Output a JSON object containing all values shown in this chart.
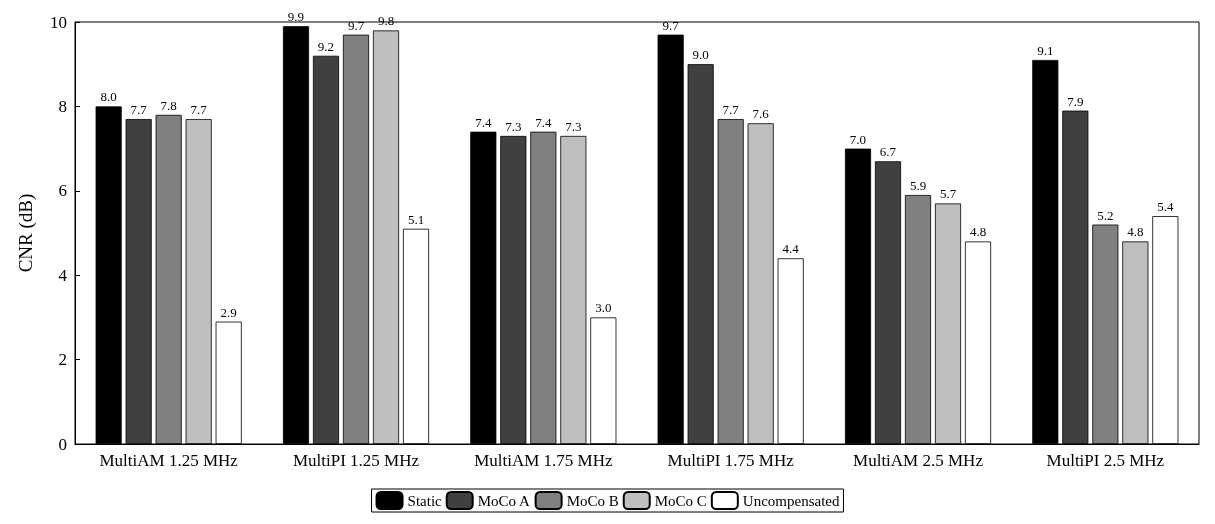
{
  "chart_data": {
    "type": "bar",
    "ylabel": "CNR (dB)",
    "categories": [
      "MultiAM 1.25 MHz",
      "MultiPI 1.25 MHz",
      "MultiAM 1.75 MHz",
      "MultiPI 1.75 MHz",
      "MultiAM 2.5 MHz",
      "MultiPI 2.5 MHz"
    ],
    "series": [
      {
        "name": "Static",
        "color": "#000000",
        "values": [
          8.0,
          9.9,
          7.4,
          9.7,
          7.0,
          9.1
        ],
        "value_labels": [
          "8.0",
          "9.9",
          "7.4",
          "9.7",
          "7.0",
          "9.1"
        ]
      },
      {
        "name": "MoCo A",
        "color": "#404040",
        "values": [
          7.7,
          9.2,
          7.3,
          9.0,
          6.7,
          7.9
        ],
        "value_labels": [
          "7.7",
          "9.2",
          "7.3",
          "9.0",
          "6.7",
          "7.9"
        ]
      },
      {
        "name": "MoCo B",
        "color": "#808080",
        "values": [
          7.8,
          9.7,
          7.4,
          7.7,
          5.9,
          5.2
        ],
        "value_labels": [
          "7.8",
          "9.7",
          "7.4",
          "7.7",
          "5.9",
          "5.2"
        ]
      },
      {
        "name": "MoCo C",
        "color": "#bfbfbf",
        "values": [
          7.7,
          9.8,
          7.3,
          7.6,
          5.7,
          4.8
        ],
        "value_labels": [
          "7.7",
          "9.8",
          "7.3",
          "7.6",
          "5.7",
          "4.8"
        ]
      },
      {
        "name": "Uncompensated",
        "color": "#ffffff",
        "values": [
          2.9,
          5.1,
          3.0,
          4.4,
          4.8,
          5.4
        ],
        "value_labels": [
          "2.9",
          "5.1",
          "3.0",
          "4.4",
          "4.8",
          "5.4"
        ]
      }
    ],
    "ylim": [
      0,
      10
    ],
    "yticks": [
      0,
      2,
      4,
      6,
      8,
      10
    ],
    "grid": false,
    "legend": "bottom"
  }
}
